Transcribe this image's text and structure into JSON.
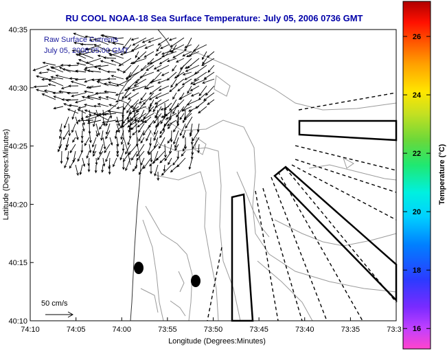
{
  "title": "RU COOL  NOAA-18  Sea Surface Temperature:  July 05, 2006 0736 GMT",
  "overlay": {
    "line1": "Raw Surface Currents",
    "line2": "July 05, 2006 05:00 GMT"
  },
  "scale_label": "50 cm/s",
  "map": {
    "xlabel": "Longitude (Degrees:Minutes)",
    "ylabel": "Latitude (Degrees:Minutes)",
    "x_ticks": [
      {
        "label": "74:10",
        "value": -74.1667
      },
      {
        "label": "74:05",
        "value": -74.0833
      },
      {
        "label": "74:00",
        "value": -74.0
      },
      {
        "label": "73:55",
        "value": -73.9167
      },
      {
        "label": "73:50",
        "value": -73.8333
      },
      {
        "label": "73:45",
        "value": -73.75
      },
      {
        "label": "73:40",
        "value": -73.6667
      },
      {
        "label": "73:35",
        "value": -73.5833
      },
      {
        "label": "73:3",
        "value": -73.5
      }
    ],
    "y_ticks": [
      {
        "label": "40:35",
        "value": 40.5833
      },
      {
        "label": "40:30",
        "value": 40.5
      },
      {
        "label": "40:25",
        "value": 40.4167
      },
      {
        "label": "40:20",
        "value": 40.3333
      },
      {
        "label": "40:15",
        "value": 40.25
      },
      {
        "label": "40:10",
        "value": 40.1667
      }
    ],
    "xlim": [
      -74.1667,
      -73.5
    ],
    "ylim": [
      40.1667,
      40.5833
    ]
  },
  "colorbar": {
    "label": "Temperature (°C)",
    "ticks": [
      "26",
      "24",
      "22",
      "20",
      "18",
      "16"
    ],
    "range": [
      15.3,
      27.2
    ]
  },
  "colors": {
    "title": "#0000a8",
    "land": "#ffffff",
    "water": "#ffffff",
    "vectors": "#000000"
  }
}
